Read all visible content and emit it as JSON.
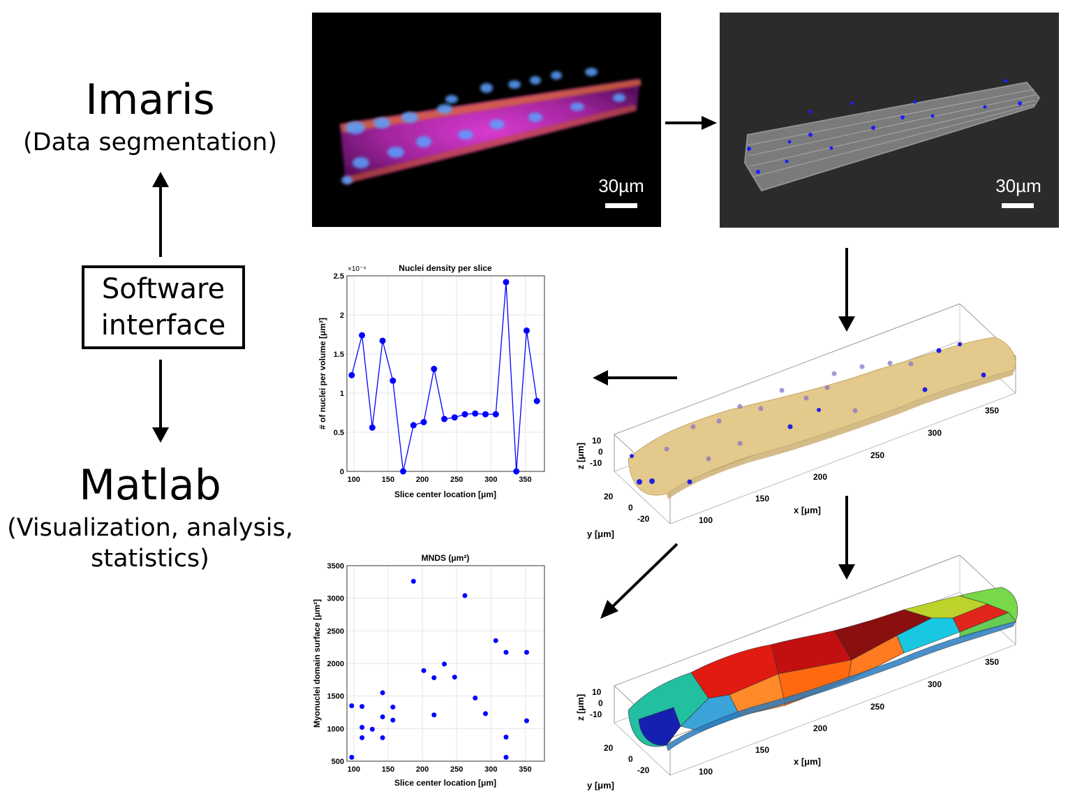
{
  "left_panel": {
    "imaris_title": "Imaris",
    "imaris_subtitle": "(Data segmentation)",
    "software_line1": "Software",
    "software_line2": "interface",
    "matlab_title": "Matlab",
    "matlab_sub1": "(Visualization, analysis,",
    "matlab_sub2": "statistics)"
  },
  "images": {
    "fluorescence_scalebar": "30µm",
    "surface_scalebar": "30µm"
  },
  "plot3d_top": {
    "x_ticks": [
      "100",
      "150",
      "200",
      "250",
      "300",
      "350"
    ],
    "y_ticks": [
      "20",
      "0",
      "-20"
    ],
    "z_ticks": [
      "10",
      "0",
      "-10"
    ],
    "xlabel": "x [μm]",
    "ylabel": "y [μm]",
    "zlabel": "z [μm]"
  },
  "plot3d_bottom": {
    "x_ticks": [
      "100",
      "150",
      "200",
      "250",
      "300",
      "350"
    ],
    "y_ticks": [
      "20",
      "0",
      "-20"
    ],
    "z_ticks": [
      "10",
      "0",
      "-10"
    ],
    "xlabel": "x [μm]",
    "ylabel": "y [μm]",
    "zlabel": "z [μm]"
  },
  "chart_data": [
    {
      "type": "line",
      "title": "Nuclei density per slice",
      "xlabel": "Slice center location [μm]",
      "ylabel": "# of nuclei per volume [μm³]",
      "exponent_label": "×10⁻⁴",
      "xlim": [
        90,
        378
      ],
      "ylim": [
        0,
        2.5
      ],
      "x_ticks": [
        100,
        150,
        200,
        250,
        300,
        350
      ],
      "y_ticks": [
        0,
        0.5,
        1,
        1.5,
        2,
        2.5
      ],
      "y_tick_labels": [
        "0",
        "0.5",
        "1",
        "1.5",
        "2",
        "2.5"
      ],
      "grid": true,
      "color": "#0000ff",
      "x": [
        97,
        112,
        127,
        142,
        157,
        172,
        187,
        202,
        217,
        232,
        247,
        262,
        277,
        292,
        307,
        322,
        337,
        352,
        367
      ],
      "values": [
        1.23,
        1.74,
        0.56,
        1.67,
        1.16,
        0.0,
        0.59,
        0.63,
        1.31,
        0.67,
        0.69,
        0.73,
        0.74,
        0.73,
        0.73,
        2.42,
        0.0,
        1.8,
        0.9
      ]
    },
    {
      "type": "scatter",
      "title": "MNDS (μm²)",
      "xlabel": "Slice center location [μm]",
      "ylabel": "Myonuclei domain surface [μm²]",
      "xlim": [
        90,
        378
      ],
      "ylim": [
        500,
        3500
      ],
      "x_ticks": [
        100,
        150,
        200,
        250,
        300,
        350
      ],
      "y_ticks": [
        500,
        1000,
        1500,
        2000,
        2500,
        3000,
        3500
      ],
      "grid": true,
      "color": "#0000ff",
      "points": [
        [
          97,
          560
        ],
        [
          97,
          1350
        ],
        [
          112,
          860
        ],
        [
          112,
          1020
        ],
        [
          112,
          1340
        ],
        [
          127,
          990
        ],
        [
          142,
          860
        ],
        [
          142,
          1180
        ],
        [
          142,
          1550
        ],
        [
          157,
          1130
        ],
        [
          157,
          1330
        ],
        [
          187,
          3260
        ],
        [
          202,
          1890
        ],
        [
          217,
          1210
        ],
        [
          217,
          1780
        ],
        [
          232,
          1990
        ],
        [
          247,
          1790
        ],
        [
          262,
          3040
        ],
        [
          277,
          1470
        ],
        [
          292,
          1230
        ],
        [
          307,
          2350
        ],
        [
          322,
          560
        ],
        [
          322,
          870
        ],
        [
          322,
          2170
        ],
        [
          352,
          1120
        ],
        [
          352,
          2170
        ]
      ]
    }
  ]
}
